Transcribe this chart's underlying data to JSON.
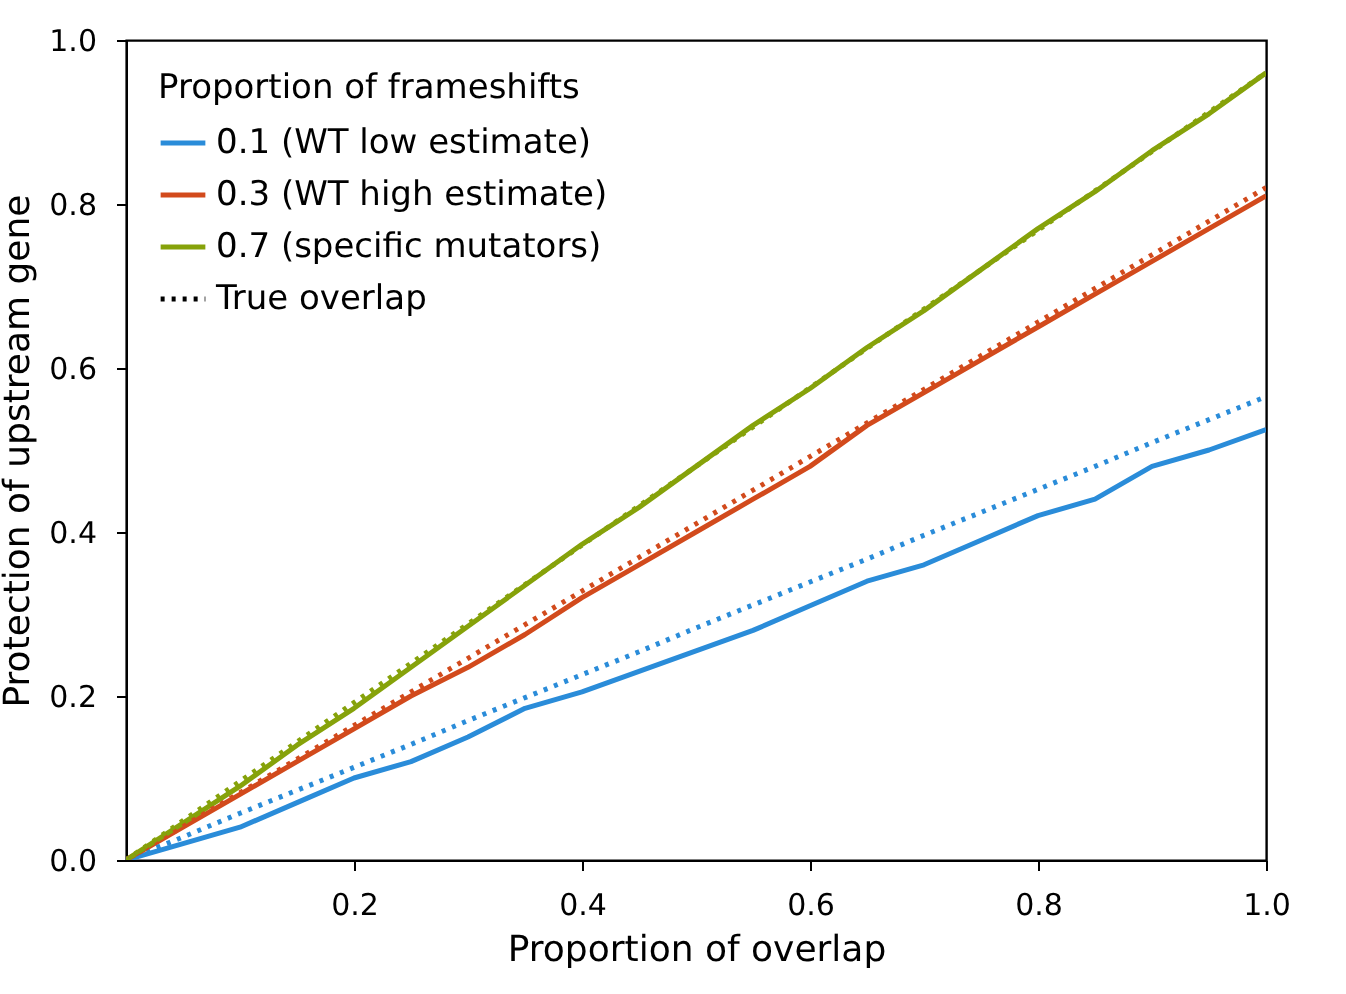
{
  "chart_data": {
    "type": "line",
    "xlabel": "Proportion of overlap",
    "ylabel": "Protection of upstream gene",
    "legend_title": "Proportion of frameshifts",
    "legend": "top left",
    "annotations": [
      "True overlap"
    ],
    "grid": false,
    "line_style": "solid",
    "marker": "none",
    "x": [
      0,
      0.05,
      0.1,
      0.15,
      0.2,
      0.25,
      0.3,
      0.35,
      0.4,
      0.45,
      0.5,
      0.55,
      0.6,
      0.65,
      0.7,
      0.75,
      0.8,
      0.85,
      0.9,
      0.95,
      1.0
    ],
    "xlim": [
      0,
      1
    ],
    "xticks": [
      0.2,
      0.4,
      0.6,
      0.8,
      {
        "value": 1,
        "label": "1.0"
      }
    ],
    "ylim": [
      0,
      1
    ],
    "yticks": [
      {
        "value": 0,
        "label": "0.0"
      },
      0.2,
      0.4,
      0.6,
      0.8,
      {
        "value": 1,
        "label": "1.0"
      }
    ],
    "series": [
      {
        "name": "0.1 (WT low estimate)",
        "color": "#2a8cd9",
        "values": [
          0,
          0.02,
          0.04,
          0.07,
          0.1,
          0.12,
          0.15,
          0.185,
          0.205,
          0.23,
          0.255,
          0.28,
          0.31,
          0.34,
          0.36,
          0.39,
          0.42,
          0.44,
          0.48,
          0.5,
          0.525
        ]
      },
      {
        "name": "0.3 (WT high estimate)",
        "color": "#d24a1c",
        "values": [
          0,
          0.04,
          0.08,
          0.12,
          0.16,
          0.2,
          0.235,
          0.275,
          0.32,
          0.36,
          0.4,
          0.44,
          0.48,
          0.53,
          0.57,
          0.61,
          0.65,
          0.69,
          0.73,
          0.77,
          0.81
        ]
      },
      {
        "name": "0.7 (specific mutators)",
        "color": "#86a20a",
        "values": [
          0,
          0.045,
          0.09,
          0.14,
          0.185,
          0.235,
          0.285,
          0.335,
          0.385,
          0.43,
          0.48,
          0.53,
          0.575,
          0.625,
          0.67,
          0.72,
          0.77,
          0.815,
          0.865,
          0.91,
          0.96
        ]
      },
      {
        "color": "#2a8cd9",
        "line_style": "dotted",
        "values": [
          0,
          0.028,
          0.057,
          0.085,
          0.113,
          0.141,
          0.17,
          0.198,
          0.226,
          0.254,
          0.283,
          0.311,
          0.339,
          0.367,
          0.396,
          0.424,
          0.452,
          0.48,
          0.509,
          0.537,
          0.565
        ]
      },
      {
        "color": "#d24a1c",
        "line_style": "dotted",
        "values": [
          0,
          0.041,
          0.082,
          0.123,
          0.164,
          0.205,
          0.246,
          0.287,
          0.328,
          0.369,
          0.41,
          0.451,
          0.492,
          0.533,
          0.574,
          0.615,
          0.656,
          0.697,
          0.738,
          0.779,
          0.82
        ]
      },
      {
        "color": "#86a20a",
        "line_style": "dotted",
        "values": [
          0,
          0.048,
          0.096,
          0.144,
          0.192,
          0.24,
          0.288,
          0.336,
          0.384,
          0.432,
          0.48,
          0.528,
          0.576,
          0.624,
          0.672,
          0.72,
          0.768,
          0.816,
          0.864,
          0.912,
          0.96
        ]
      }
    ]
  }
}
